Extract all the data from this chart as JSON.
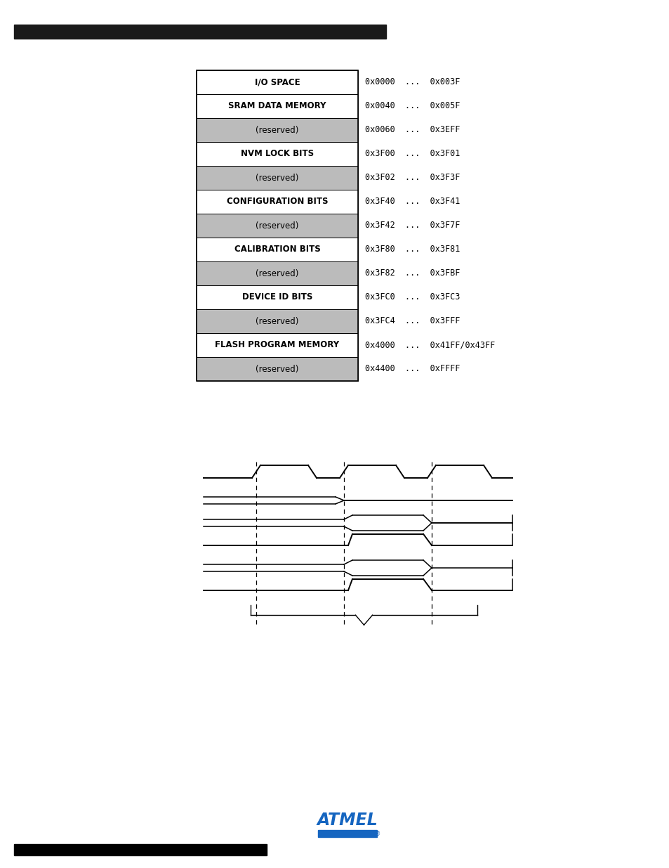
{
  "table_rows": [
    {
      "label": "I/O SPACE",
      "addr": "0x0000  ...  0x003F",
      "bg": "#ffffff",
      "bold": true
    },
    {
      "label": "SRAM DATA MEMORY",
      "addr": "0x0040  ...  0x005F",
      "bg": "#ffffff",
      "bold": true
    },
    {
      "label": "(reserved)",
      "addr": "0x0060  ...  0x3EFF",
      "bg": "#bbbbbb",
      "bold": false
    },
    {
      "label": "NVM LOCK BITS",
      "addr": "0x3F00  ...  0x3F01",
      "bg": "#ffffff",
      "bold": true
    },
    {
      "label": "(reserved)",
      "addr": "0x3F02  ...  0x3F3F",
      "bg": "#bbbbbb",
      "bold": false
    },
    {
      "label": "CONFIGURATION BITS",
      "addr": "0x3F40  ...  0x3F41",
      "bg": "#ffffff",
      "bold": true
    },
    {
      "label": "(reserved)",
      "addr": "0x3F42  ...  0x3F7F",
      "bg": "#bbbbbb",
      "bold": false
    },
    {
      "label": "CALIBRATION BITS",
      "addr": "0x3F80  ...  0x3F81",
      "bg": "#ffffff",
      "bold": true
    },
    {
      "label": "(reserved)",
      "addr": "0x3F82  ...  0x3FBF",
      "bg": "#bbbbbb",
      "bold": false
    },
    {
      "label": "DEVICE ID BITS",
      "addr": "0x3FC0  ...  0x3FC3",
      "bg": "#ffffff",
      "bold": true
    },
    {
      "label": "(reserved)",
      "addr": "0x3FC4  ...  0x3FFF",
      "bg": "#bbbbbb",
      "bold": false
    },
    {
      "label": "FLASH PROGRAM MEMORY",
      "addr": "0x4000  ...  0x41FF/0x43FF",
      "bg": "#ffffff",
      "bold": true
    },
    {
      "label": "(reserved)",
      "addr": "0x4400  ...  0xFFFF",
      "bg": "#bbbbbb",
      "bold": false
    }
  ],
  "header_bar_color": "#1a1a1a",
  "bg_color": "#ffffff",
  "atmel_logo_color": "#1565c0",
  "footer_bar_color": "#000000"
}
